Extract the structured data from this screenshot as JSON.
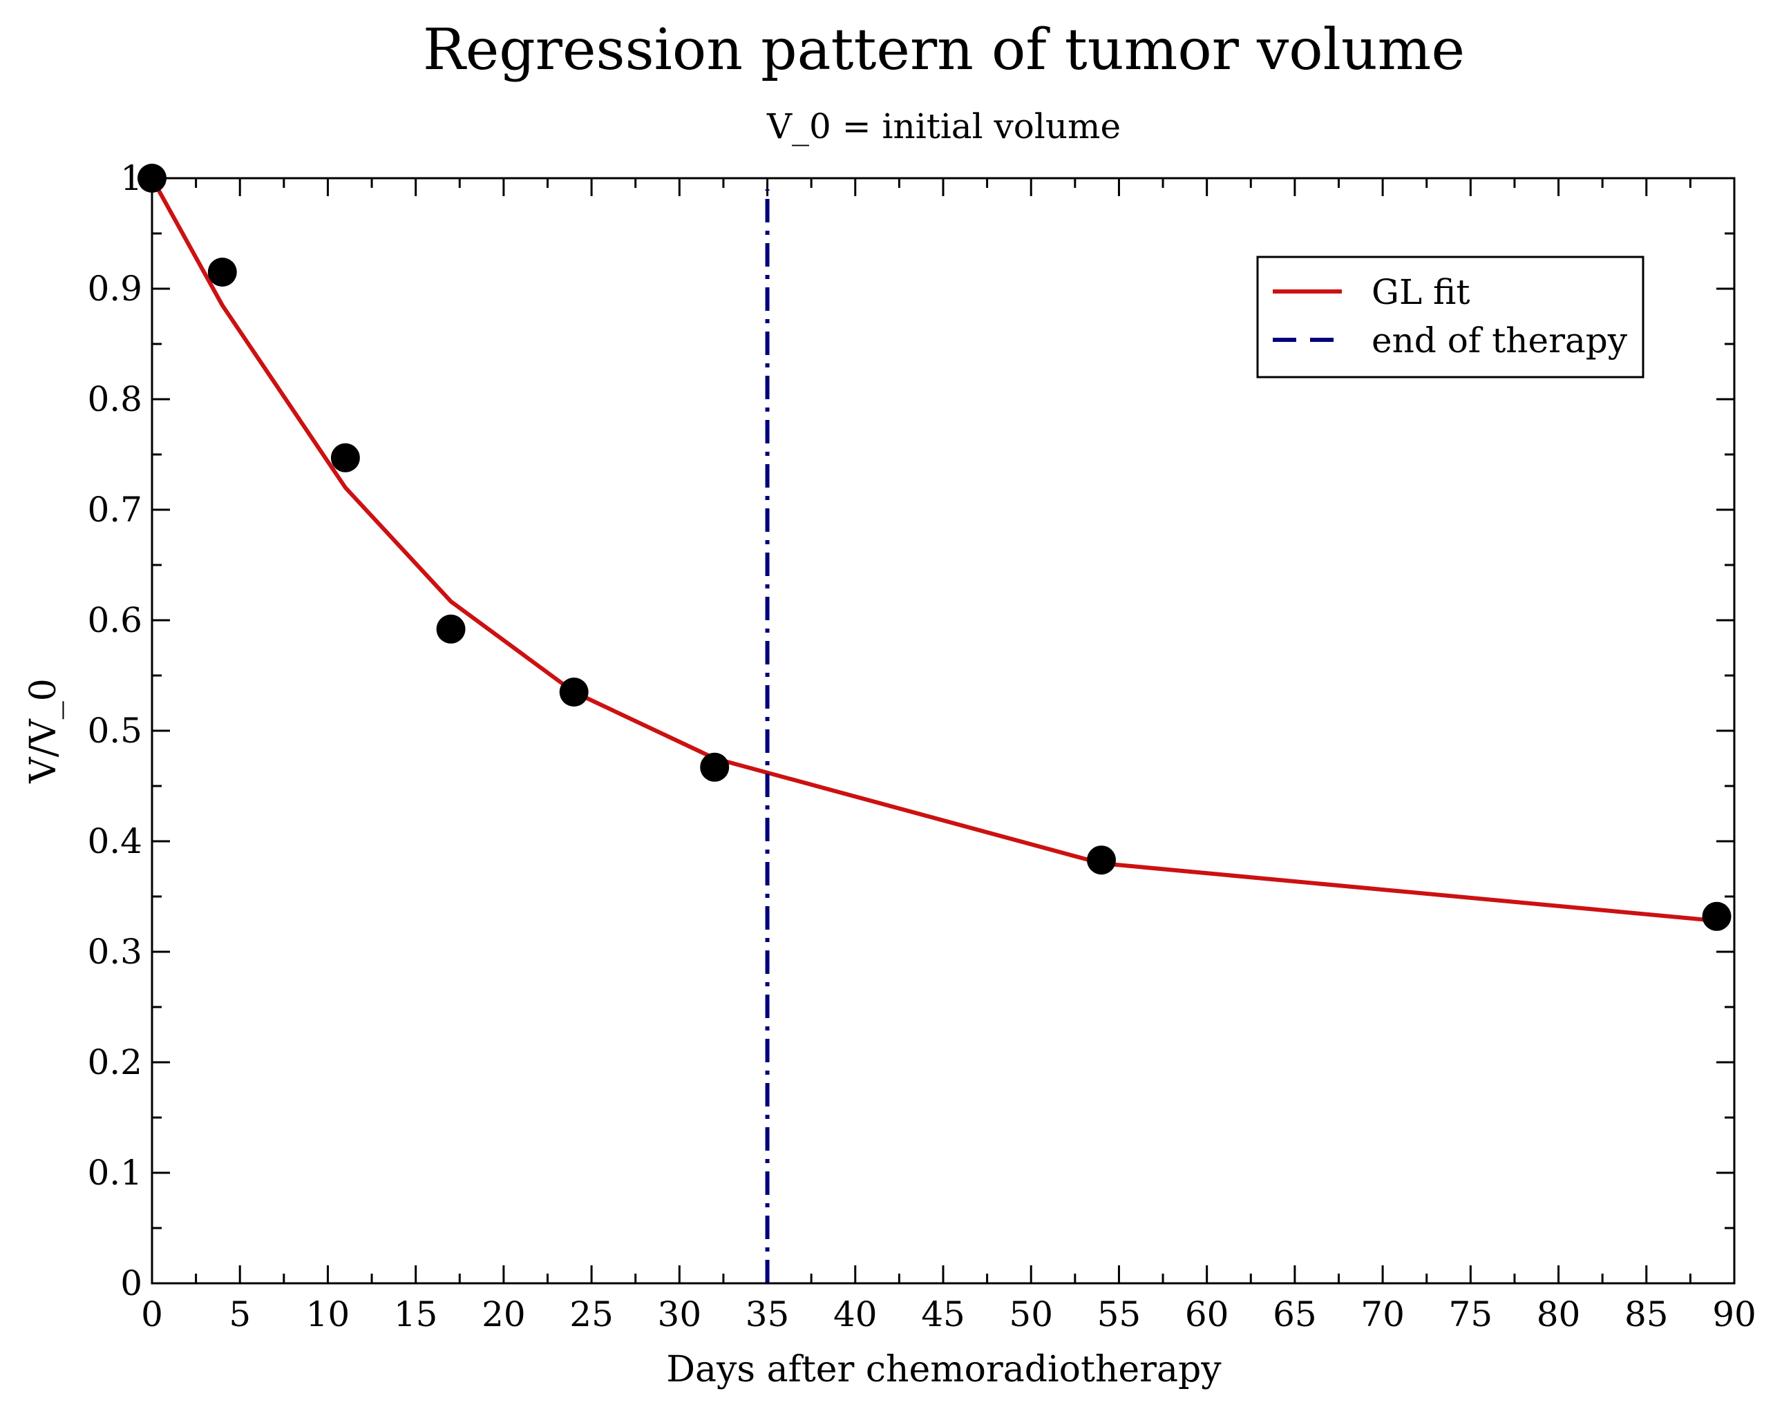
{
  "chart_data": {
    "type": "scatter",
    "title": "Regression pattern of tumor volume",
    "subtitle": "V_0 = initial volume",
    "xlabel": "Days after chemoradiotherapy",
    "ylabel": "V/V_0",
    "xlim": [
      0,
      90
    ],
    "ylim": [
      0,
      1
    ],
    "x_major_ticks": [
      0,
      5,
      10,
      15,
      20,
      25,
      30,
      35,
      40,
      45,
      50,
      55,
      60,
      65,
      70,
      75,
      80,
      85,
      90
    ],
    "x_tick_labels": [
      "0",
      "5",
      "10",
      "15",
      "20",
      "25",
      "30",
      "35",
      "40",
      "45",
      "50",
      "55",
      "60",
      "65",
      "70",
      "75",
      "80",
      "85",
      "90"
    ],
    "x_minor_step": 2.5,
    "y_major_ticks": [
      0,
      0.1,
      0.2,
      0.3,
      0.4,
      0.5,
      0.6,
      0.7,
      0.8,
      0.9,
      1
    ],
    "y_tick_labels": [
      "0",
      "0.1",
      "0.2",
      "0.3",
      "0.4",
      "0.5",
      "0.6",
      "0.7",
      "0.8",
      "0.9",
      "1"
    ],
    "y_minor_step": 0.05,
    "grid": false,
    "legend_position": "top-right",
    "points": [
      {
        "x": 0,
        "y": 1.0
      },
      {
        "x": 4,
        "y": 0.915
      },
      {
        "x": 11,
        "y": 0.747
      },
      {
        "x": 17,
        "y": 0.592
      },
      {
        "x": 24,
        "y": 0.535
      },
      {
        "x": 32,
        "y": 0.467
      },
      {
        "x": 54,
        "y": 0.383
      },
      {
        "x": 89,
        "y": 0.332
      }
    ],
    "series": [
      {
        "name": "GL fit",
        "kind": "line",
        "color": "#cc1111",
        "style": "solid",
        "x": [
          0,
          4,
          11,
          17,
          24,
          32,
          54,
          89
        ],
        "y": [
          1.0,
          0.885,
          0.72,
          0.617,
          0.535,
          0.475,
          0.38,
          0.328
        ]
      },
      {
        "name": "end of therapy",
        "kind": "vline",
        "color": "#00007a",
        "style": "dashdot",
        "x": 35,
        "y_range": [
          0,
          0.99
        ]
      }
    ],
    "point_color": "#000000"
  }
}
